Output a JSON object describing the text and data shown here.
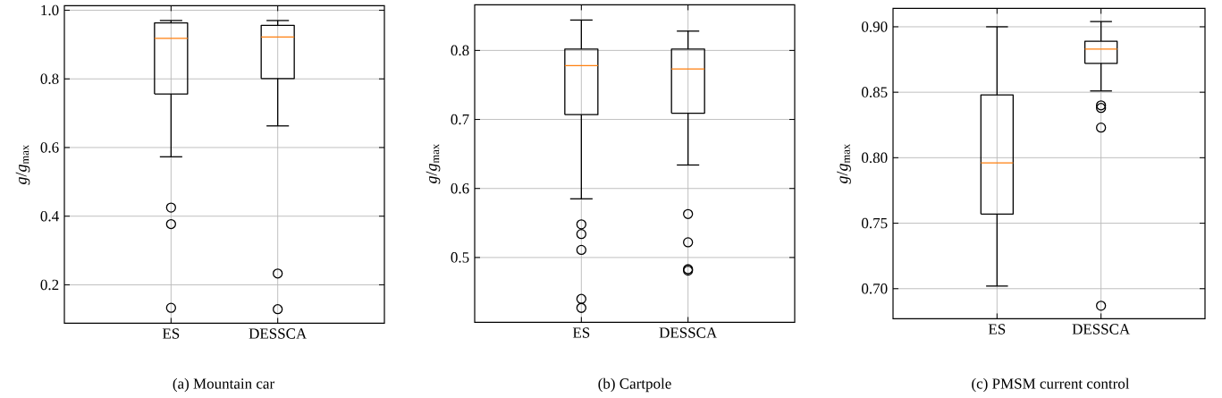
{
  "chart_data": [
    {
      "type": "box",
      "categories": [
        "ES",
        "DESSCA"
      ],
      "ylabel": "*g*/*g*$_{max}$",
      "ylim": [
        0.088,
        1.013
      ],
      "yticks": [
        0.2,
        0.4,
        0.6,
        0.8,
        {
          "value": 1.0,
          "label": "1.0"
        }
      ],
      "grid": true,
      "boxes": [
        {
          "low": 0.573,
          "q1": 0.756,
          "median": 0.918,
          "q3": 0.963,
          "high": 0.97,
          "outliers": [
            0.425,
            0.377,
            0.133
          ]
        },
        {
          "low": 0.663,
          "q1": 0.801,
          "median": 0.922,
          "q3": 0.956,
          "high": 0.97,
          "outliers": [
            0.233,
            0.129
          ]
        }
      ],
      "annotations": [
        "(a) Mountain car"
      ]
    },
    {
      "type": "box",
      "categories": [
        "ES",
        "DESSCA"
      ],
      "ylabel": "*g*/*g*$_{max}$",
      "ylim": [
        0.406,
        0.866
      ],
      "yticks": [
        0.5,
        0.6,
        0.7,
        0.8
      ],
      "grid": true,
      "boxes": [
        {
          "low": 0.585,
          "q1": 0.707,
          "median": 0.778,
          "q3": 0.802,
          "high": 0.844,
          "outliers": [
            0.548,
            0.534,
            0.511,
            0.44,
            0.427
          ]
        },
        {
          "low": 0.634,
          "q1": 0.709,
          "median": 0.773,
          "q3": 0.802,
          "high": 0.828,
          "outliers": [
            0.563,
            0.522,
            0.483,
            0.481
          ]
        }
      ],
      "annotations": [
        "(b) Cartpole"
      ]
    },
    {
      "type": "box",
      "categories": [
        "ES",
        "DESSCA"
      ],
      "ylabel": "*g*/*g*$_{max}$",
      "ylim": [
        0.677,
        0.914
      ],
      "yticks": [
        {
          "value": 0.7,
          "label": "0.70"
        },
        {
          "value": 0.75,
          "label": "0.75"
        },
        {
          "value": 0.8,
          "label": "0.80"
        },
        {
          "value": 0.85,
          "label": "0.85"
        },
        {
          "value": 0.9,
          "label": "0.90"
        }
      ],
      "grid": true,
      "boxes": [
        {
          "low": 0.702,
          "q1": 0.757,
          "median": 0.796,
          "q3": 0.848,
          "high": 0.9
        },
        {
          "low": 0.851,
          "q1": 0.872,
          "median": 0.883,
          "q3": 0.889,
          "high": 0.904,
          "outliers": [
            0.84,
            0.838,
            0.823,
            0.687
          ]
        }
      ],
      "annotations": [
        "(c) PMSM current control"
      ]
    }
  ]
}
